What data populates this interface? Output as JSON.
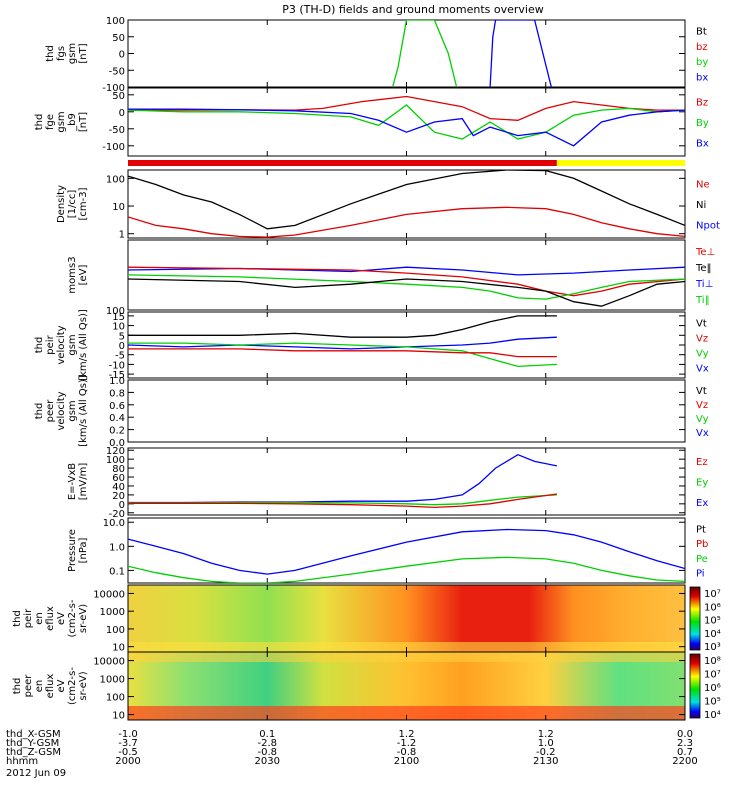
{
  "title": "P3 (TH-D) fields and ground moments overview",
  "date_label": "2012 Jun 09",
  "colors": {
    "black": "#000000",
    "red": "#e00000",
    "green": "#00d000",
    "blue": "#0000ff",
    "yellow": "#ffff00"
  },
  "time_range_hhmm": [
    2000,
    2200
  ],
  "time_ticks": {
    "hhmm": [
      "2000",
      "2030",
      "2100",
      "2130",
      "2200"
    ],
    "frac": [
      0,
      0.25,
      0.5,
      0.75,
      1.0
    ]
  },
  "ephemeris": {
    "rows": [
      {
        "label": "thd_X-GSM",
        "values": [
          "-1.0",
          "0.1",
          "1.2",
          "1.2",
          "0.0"
        ]
      },
      {
        "label": "thd_Y-GSM",
        "values": [
          "-3.7",
          "-2.8",
          "-1.2",
          "1.0",
          "2.3"
        ]
      },
      {
        "label": "thd_Z-GSM",
        "values": [
          "-0.5",
          "-0.8",
          "-0.8",
          "-0.2",
          "0.7"
        ]
      },
      {
        "label": "hhmm",
        "values": [
          "2000",
          "2030",
          "2100",
          "2130",
          "2200"
        ]
      }
    ]
  },
  "chart_data": [
    {
      "id": "fgs",
      "type": "line",
      "ylabel": [
        "thd",
        "fgs",
        "gsm",
        "[nT]"
      ],
      "ylim": [
        -100,
        100
      ],
      "yticks": [
        "100",
        "50",
        "0",
        "-50",
        "-100"
      ],
      "legend": [
        {
          "label": "Bt",
          "color": "#000000"
        },
        {
          "label": "bz",
          "color": "#e00000"
        },
        {
          "label": "by",
          "color": "#00d000"
        },
        {
          "label": "bx",
          "color": "#0000ff"
        }
      ],
      "series": [
        {
          "name": "by",
          "color": "#00d000",
          "x": [
            0.475,
            0.485,
            0.5,
            0.55,
            0.575,
            0.59
          ],
          "y": [
            -100,
            -40,
            100,
            100,
            0,
            -100
          ]
        },
        {
          "name": "bx",
          "color": "#0000ff",
          "x": [
            0.65,
            0.655,
            0.66,
            0.69,
            0.73,
            0.76
          ],
          "y": [
            -100,
            50,
            100,
            100,
            100,
            -100
          ]
        }
      ]
    },
    {
      "id": "fgs_ds",
      "type": "line",
      "ylabel": [
        "thd",
        "fge",
        "gsm",
        "_b9",
        "[nT]"
      ],
      "ylim": [
        -130,
        70
      ],
      "yticks": [
        "50",
        "0",
        "-50",
        "-100"
      ],
      "legend": [
        {
          "label": "Bz",
          "color": "#e00000"
        },
        {
          "label": "By",
          "color": "#00d000"
        },
        {
          "label": "Bx",
          "color": "#0000ff"
        }
      ],
      "series": [
        {
          "name": "Bz",
          "color": "#e00000",
          "x": [
            0,
            0.1,
            0.2,
            0.3,
            0.35,
            0.42,
            0.5,
            0.55,
            0.6,
            0.65,
            0.7,
            0.75,
            0.8,
            0.85,
            0.9,
            0.95,
            1.0
          ],
          "y": [
            5,
            5,
            6,
            5,
            10,
            30,
            45,
            30,
            15,
            -20,
            -25,
            10,
            30,
            20,
            10,
            5,
            5
          ]
        },
        {
          "name": "By",
          "color": "#00d000",
          "x": [
            0,
            0.1,
            0.2,
            0.3,
            0.4,
            0.45,
            0.5,
            0.55,
            0.6,
            0.65,
            0.7,
            0.75,
            0.8,
            0.85,
            0.9,
            0.95,
            1.0
          ],
          "y": [
            5,
            0,
            0,
            -5,
            -15,
            -40,
            20,
            -60,
            -80,
            -30,
            -80,
            -60,
            -10,
            5,
            10,
            0,
            5
          ]
        },
        {
          "name": "Bx",
          "color": "#0000ff",
          "x": [
            0,
            0.1,
            0.2,
            0.3,
            0.4,
            0.45,
            0.5,
            0.55,
            0.6,
            0.62,
            0.65,
            0.7,
            0.75,
            0.8,
            0.85,
            0.9,
            0.95,
            1.0
          ],
          "y": [
            8,
            8,
            6,
            3,
            -5,
            -25,
            -60,
            -30,
            -20,
            -70,
            -45,
            -70,
            -60,
            -100,
            -30,
            -10,
            0,
            5
          ]
        }
      ]
    },
    {
      "id": "bar",
      "type": "status_bar",
      "segments": [
        {
          "from": 0,
          "to": 0.77,
          "color": "#e00000"
        },
        {
          "from": 0.77,
          "to": 1,
          "color": "#ffff00"
        }
      ]
    },
    {
      "id": "density",
      "type": "line",
      "yscale": "log",
      "ylabel": [
        "Density",
        "[1/cc]",
        "[cm-3]"
      ],
      "ylim": [
        0.7,
        200
      ],
      "yticks": [
        "100",
        "10",
        "1"
      ],
      "legend": [
        {
          "label": "Ne",
          "color": "#e00000"
        },
        {
          "label": "Ni",
          "color": "#000000"
        },
        {
          "label": "Npot",
          "color": "#0000ff"
        }
      ],
      "series": [
        {
          "name": "Ni",
          "color": "#000000",
          "x": [
            0,
            0.05,
            0.1,
            0.15,
            0.2,
            0.25,
            0.3,
            0.4,
            0.5,
            0.6,
            0.68,
            0.75,
            0.8,
            0.85,
            0.9,
            0.95,
            1.0
          ],
          "y": [
            120,
            60,
            25,
            14,
            5,
            1.5,
            2,
            12,
            60,
            150,
            200,
            190,
            100,
            35,
            12,
            5,
            2
          ]
        },
        {
          "name": "Ne",
          "color": "#e00000",
          "x": [
            0,
            0.05,
            0.1,
            0.15,
            0.2,
            0.25,
            0.3,
            0.4,
            0.5,
            0.6,
            0.68,
            0.75,
            0.8,
            0.85,
            0.9,
            0.95,
            1.0
          ],
          "y": [
            4,
            2,
            1.5,
            1,
            0.8,
            0.75,
            0.9,
            2,
            5,
            8,
            9,
            8,
            5,
            2.5,
            1.5,
            1,
            0.8
          ]
        }
      ]
    },
    {
      "id": "temp",
      "type": "line",
      "yscale": "log",
      "ylabel": [
        "moms3",
        "[eV]"
      ],
      "ylim": [
        100,
        3000
      ],
      "yticks": [
        "100"
      ],
      "legend": [
        {
          "label": "Te⊥",
          "color": "#e00000"
        },
        {
          "label": "Te‖",
          "color": "#000000"
        },
        {
          "label": "Ti⊥",
          "color": "#0000ff"
        },
        {
          "label": "Ti‖",
          "color": "#00d000"
        }
      ],
      "series": [
        {
          "name": "Ti⊥",
          "color": "#0000ff",
          "x": [
            0,
            0.2,
            0.4,
            0.5,
            0.6,
            0.7,
            0.8,
            0.9,
            1.0
          ],
          "y": [
            700,
            750,
            650,
            800,
            700,
            550,
            600,
            700,
            800
          ]
        },
        {
          "name": "Te⊥",
          "color": "#e00000",
          "x": [
            0,
            0.2,
            0.4,
            0.5,
            0.6,
            0.7,
            0.75,
            0.8,
            0.85,
            0.9,
            1.0
          ],
          "y": [
            800,
            750,
            700,
            600,
            500,
            350,
            250,
            200,
            250,
            350,
            450
          ]
        },
        {
          "name": "Ti‖",
          "color": "#00d000",
          "x": [
            0,
            0.2,
            0.4,
            0.5,
            0.6,
            0.65,
            0.7,
            0.75,
            0.8,
            0.85,
            0.9,
            1.0
          ],
          "y": [
            550,
            500,
            400,
            350,
            300,
            250,
            180,
            170,
            220,
            300,
            400,
            450
          ]
        },
        {
          "name": "Te‖",
          "color": "#000000",
          "x": [
            0,
            0.2,
            0.3,
            0.4,
            0.5,
            0.6,
            0.7,
            0.75,
            0.8,
            0.85,
            0.9,
            0.95,
            1.0
          ],
          "y": [
            450,
            400,
            300,
            350,
            450,
            400,
            300,
            250,
            150,
            120,
            200,
            350,
            400
          ]
        }
      ]
    },
    {
      "id": "peir_vel",
      "type": "line",
      "ylabel": [
        "thd",
        "peir",
        "velocity",
        "gsm",
        "[km/s (All Qs)]"
      ],
      "ylim": [
        -17,
        17
      ],
      "yticks": [
        "15",
        "10",
        "5",
        "0",
        "-5",
        "-10",
        "-15"
      ],
      "legend": [
        {
          "label": "Vt",
          "color": "#000000"
        },
        {
          "label": "Vz",
          "color": "#e00000"
        },
        {
          "label": "Vy",
          "color": "#00d000"
        },
        {
          "label": "Vx",
          "color": "#0000ff"
        }
      ],
      "series": [
        {
          "name": "Vt",
          "color": "#000000",
          "x": [
            0,
            0.1,
            0.2,
            0.3,
            0.4,
            0.5,
            0.55,
            0.6,
            0.65,
            0.7,
            0.77
          ],
          "y": [
            5,
            5,
            5,
            6,
            4,
            4,
            5,
            8,
            12,
            15,
            15
          ]
        },
        {
          "name": "Vx",
          "color": "#0000ff",
          "x": [
            0,
            0.1,
            0.2,
            0.3,
            0.4,
            0.5,
            0.6,
            0.65,
            0.7,
            0.77
          ],
          "y": [
            0,
            -1,
            0,
            -1,
            -2,
            -1,
            0,
            1,
            3,
            4
          ]
        },
        {
          "name": "Vy",
          "color": "#00d000",
          "x": [
            0,
            0.1,
            0.2,
            0.3,
            0.4,
            0.5,
            0.55,
            0.6,
            0.65,
            0.7,
            0.77
          ],
          "y": [
            1,
            1,
            0,
            1,
            0,
            -1,
            -2,
            -3,
            -7,
            -11,
            -10
          ]
        },
        {
          "name": "Vz",
          "color": "#e00000",
          "x": [
            0,
            0.1,
            0.2,
            0.3,
            0.4,
            0.5,
            0.6,
            0.65,
            0.7,
            0.77
          ],
          "y": [
            -2,
            -2,
            -2,
            -3,
            -3,
            -3,
            -4,
            -4,
            -6,
            -6
          ]
        }
      ]
    },
    {
      "id": "peer_vel",
      "type": "line",
      "ylabel": [
        "thd",
        "peer",
        "velocity",
        "gsm",
        "[km/s (All Qs)]"
      ],
      "ylim": [
        0,
        1
      ],
      "yticks": [
        "1.0",
        "0.8",
        "0.6",
        "0.4",
        "0.2",
        "0.0"
      ],
      "legend": [
        {
          "label": "Vt",
          "color": "#000000"
        },
        {
          "label": "Vz",
          "color": "#e00000"
        },
        {
          "label": "Vy",
          "color": "#00d000"
        },
        {
          "label": "Vx",
          "color": "#0000ff"
        }
      ],
      "series": []
    },
    {
      "id": "efield",
      "type": "line",
      "ylabel": [
        "E=-VxB",
        "[mV/m]"
      ],
      "ylim": [
        -25,
        125
      ],
      "yticks": [
        "120",
        "100",
        "80",
        "60",
        "40",
        "20",
        "0",
        "-20"
      ],
      "legend": [
        {
          "label": "Ez",
          "color": "#e00000"
        },
        {
          "label": "Ey",
          "color": "#00d000"
        },
        {
          "label": "Ex",
          "color": "#0000ff"
        }
      ],
      "series": [
        {
          "name": "Ex",
          "color": "#0000ff",
          "x": [
            0,
            0.1,
            0.2,
            0.3,
            0.4,
            0.5,
            0.55,
            0.6,
            0.63,
            0.66,
            0.7,
            0.73,
            0.77
          ],
          "y": [
            3,
            3,
            4,
            4,
            6,
            6,
            10,
            20,
            45,
            80,
            110,
            95,
            85
          ]
        },
        {
          "name": "Ey",
          "color": "#00d000",
          "x": [
            0,
            0.1,
            0.2,
            0.3,
            0.4,
            0.5,
            0.55,
            0.6,
            0.65,
            0.7,
            0.77
          ],
          "y": [
            2,
            2,
            3,
            3,
            2,
            0,
            -2,
            0,
            8,
            15,
            20
          ]
        },
        {
          "name": "Ez",
          "color": "#e00000",
          "x": [
            0,
            0.1,
            0.2,
            0.3,
            0.4,
            0.5,
            0.55,
            0.6,
            0.65,
            0.7,
            0.77
          ],
          "y": [
            1,
            1,
            1,
            0,
            -2,
            -5,
            -8,
            -5,
            0,
            10,
            22
          ]
        }
      ]
    },
    {
      "id": "pressure",
      "type": "line",
      "yscale": "log",
      "ylabel": [
        "Pressure",
        "[nPa]"
      ],
      "ylim": [
        0.03,
        15
      ],
      "yticks": [
        "10.0",
        "1.0",
        "0.1"
      ],
      "legend": [
        {
          "label": "Pt",
          "color": "#000000"
        },
        {
          "label": "Pb",
          "color": "#e00000"
        },
        {
          "label": "Pe",
          "color": "#00d000"
        },
        {
          "label": "Pi",
          "color": "#0000ff"
        }
      ],
      "series": [
        {
          "name": "Pi",
          "color": "#0000ff",
          "x": [
            0,
            0.05,
            0.1,
            0.15,
            0.2,
            0.25,
            0.3,
            0.4,
            0.5,
            0.6,
            0.68,
            0.75,
            0.8,
            0.85,
            0.9,
            0.95,
            1.0
          ],
          "y": [
            2,
            1,
            0.5,
            0.2,
            0.1,
            0.07,
            0.1,
            0.4,
            1.5,
            4,
            5,
            4.5,
            3,
            1.5,
            0.6,
            0.25,
            0.12
          ]
        },
        {
          "name": "Pe",
          "color": "#00d000",
          "x": [
            0,
            0.05,
            0.1,
            0.15,
            0.2,
            0.25,
            0.3,
            0.4,
            0.5,
            0.6,
            0.68,
            0.75,
            0.8,
            0.85,
            0.9,
            0.95,
            1.0
          ],
          "y": [
            0.15,
            0.08,
            0.05,
            0.035,
            0.03,
            0.03,
            0.035,
            0.07,
            0.15,
            0.3,
            0.35,
            0.3,
            0.2,
            0.1,
            0.06,
            0.04,
            0.035
          ]
        }
      ]
    },
    {
      "id": "ion_spec",
      "type": "heatmap",
      "ylabel": [
        "thd",
        "peir",
        "en",
        "eflux",
        "eV",
        "(cm2-s-",
        "sr-eV)"
      ],
      "ylim": [
        5,
        30000
      ],
      "yscale": "log",
      "yticks": [
        "10000",
        "1000",
        "100",
        "10"
      ],
      "colorbar": {
        "ticks": [
          "10⁷",
          "10⁶",
          "10⁵",
          "10⁴",
          "10³"
        ]
      }
    },
    {
      "id": "elec_spec",
      "type": "heatmap",
      "ylabel": [
        "thd",
        "peer",
        "en",
        "eflux",
        "eV",
        "(cm2-s-",
        "sr-eV)"
      ],
      "ylim": [
        5,
        30000
      ],
      "yscale": "log",
      "yticks": [
        "10000",
        "1000",
        "100",
        "10"
      ],
      "colorbar": {
        "ticks": [
          "10⁸",
          "10⁷",
          "10⁶",
          "10⁵",
          "10⁴"
        ]
      }
    }
  ]
}
